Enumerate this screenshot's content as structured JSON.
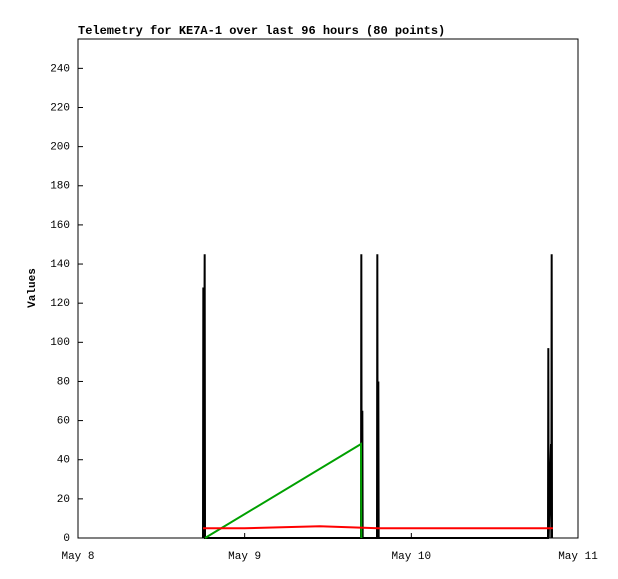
{
  "chart_data": {
    "type": "line",
    "title": "Telemetry for KE7A-1 over last 96 hours (80 points)",
    "y_label": "Values",
    "xlim": [
      8,
      11
    ],
    "xticks": [
      {
        "value": 8,
        "label": "May 8"
      },
      {
        "value": 9,
        "label": "May 9"
      },
      {
        "value": 10,
        "label": "May 10"
      },
      {
        "value": 11,
        "label": "May 11"
      }
    ],
    "ylim": [
      0,
      255
    ],
    "yticks": [
      0,
      20,
      40,
      60,
      80,
      100,
      120,
      140,
      160,
      180,
      200,
      220,
      240
    ],
    "grid": false,
    "series": [
      {
        "color": "#000000",
        "x": [
          8.75,
          8.752,
          8.754,
          8.76,
          8.762,
          9.698,
          9.7,
          9.702,
          9.706,
          9.708,
          9.794,
          9.796,
          9.798,
          9.802,
          9.804,
          10.82,
          10.822,
          10.824,
          10.838,
          10.84,
          10.842,
          10.844
        ],
        "values": [
          0,
          128,
          0,
          145,
          0,
          0,
          145,
          0,
          65,
          0,
          0,
          145,
          0,
          80,
          0,
          0,
          97,
          0,
          48,
          0,
          145,
          0
        ]
      },
      {
        "color": "#00a000",
        "x": [
          8.762,
          9.698,
          9.7
        ],
        "values": [
          0,
          48,
          0
        ]
      },
      {
        "color": "#ff0000",
        "x": [
          8.75,
          9.0,
          9.45,
          9.8,
          10.85
        ],
        "values": [
          5,
          5,
          6,
          5,
          5
        ]
      }
    ]
  }
}
